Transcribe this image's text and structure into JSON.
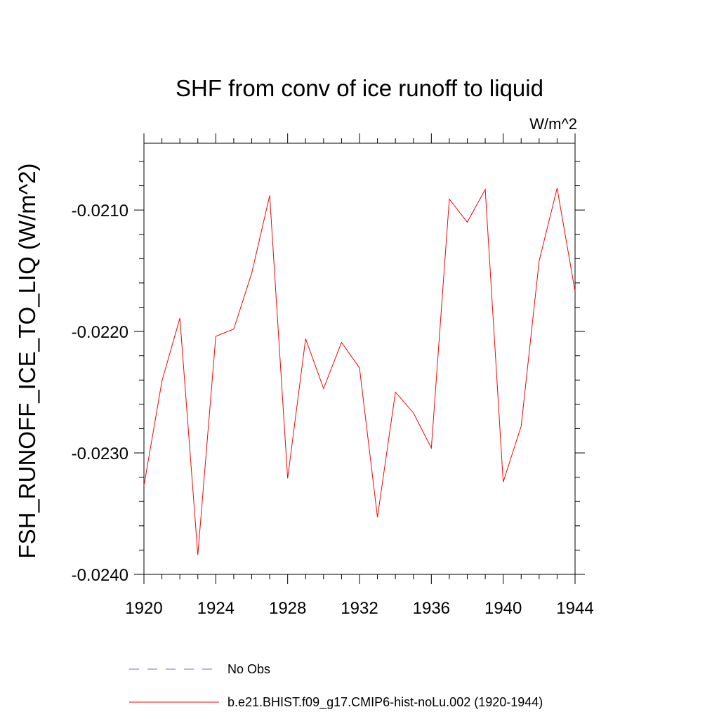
{
  "chart_data": {
    "type": "line",
    "title": "SHF from conv of ice runoff to liquid",
    "units_label": "W/m^2",
    "xlabel": "",
    "ylabel": "FSH_RUNOFF_ICE_TO_LIQ  (W/m^2)",
    "xlim": [
      1920,
      1944
    ],
    "ylim": [
      -0.024,
      -0.02045
    ],
    "x_ticks": [
      1920,
      1924,
      1928,
      1932,
      1936,
      1940,
      1944
    ],
    "x_tick_labels": [
      "1920",
      "1924",
      "1928",
      "1932",
      "1936",
      "1940",
      "1944"
    ],
    "y_ticks": [
      -0.024,
      -0.023,
      -0.022,
      -0.021
    ],
    "y_tick_labels": [
      "-0.0240",
      "-0.0230",
      "-0.0220",
      "-0.0210"
    ],
    "y_minor_step": 0.0002,
    "grid": false,
    "legend_position": "bottom",
    "legend": [
      {
        "label": "No Obs",
        "color": "#7a6fb8",
        "style": "dashed"
      },
      {
        "label": "b.e21.BHIST.f09_g17.CMIP6-hist-noLu.002 (1920-1944)",
        "color": "#ff0000",
        "style": "solid"
      }
    ],
    "series": [
      {
        "name": "b.e21.BHIST.f09_g17.CMIP6-hist-noLu.002 (1920-1944)",
        "color": "#ff0000",
        "x": [
          1920,
          1921,
          1922,
          1923,
          1924,
          1925,
          1926,
          1927,
          1928,
          1929,
          1930,
          1931,
          1932,
          1933,
          1934,
          1935,
          1936,
          1937,
          1938,
          1939,
          1940,
          1941,
          1942,
          1943,
          1944
        ],
        "values": [
          -0.02327,
          -0.02241,
          -0.02189,
          -0.02384,
          -0.02204,
          -0.02198,
          -0.02152,
          -0.02088,
          -0.02321,
          -0.02206,
          -0.02247,
          -0.02209,
          -0.0223,
          -0.02353,
          -0.0225,
          -0.02267,
          -0.02296,
          -0.02091,
          -0.0211,
          -0.02083,
          -0.02324,
          -0.02278,
          -0.02142,
          -0.02082,
          -0.02167
        ]
      }
    ]
  }
}
